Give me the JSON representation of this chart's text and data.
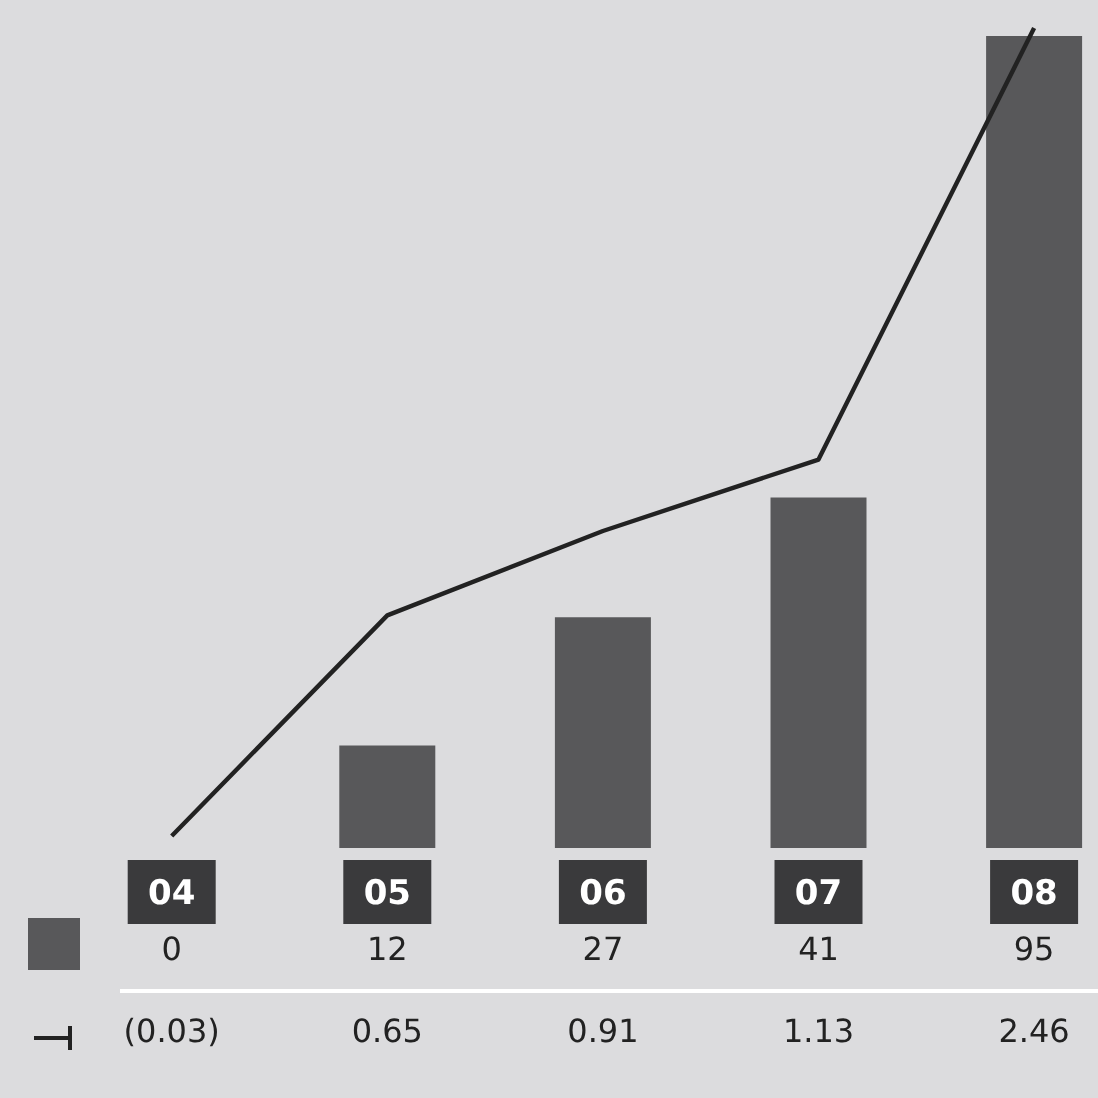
{
  "chart_data": {
    "type": "bar",
    "categories": [
      "04",
      "05",
      "06",
      "07",
      "08"
    ],
    "tick_labels": "x",
    "series": [
      {
        "type": "bar",
        "color": "#58585a",
        "values": [
          0,
          12,
          27,
          41,
          95
        ],
        "value_labels": [
          "0",
          "12",
          "27",
          "41",
          "95"
        ]
      },
      {
        "type": "line",
        "axis": "y2",
        "color": "#222222",
        "values": [
          -0.03,
          0.65,
          0.91,
          1.13,
          2.46
        ],
        "value_labels": [
          "(0.03)",
          "0.65",
          "0.91",
          "1.13",
          "2.46"
        ]
      }
    ]
  }
}
